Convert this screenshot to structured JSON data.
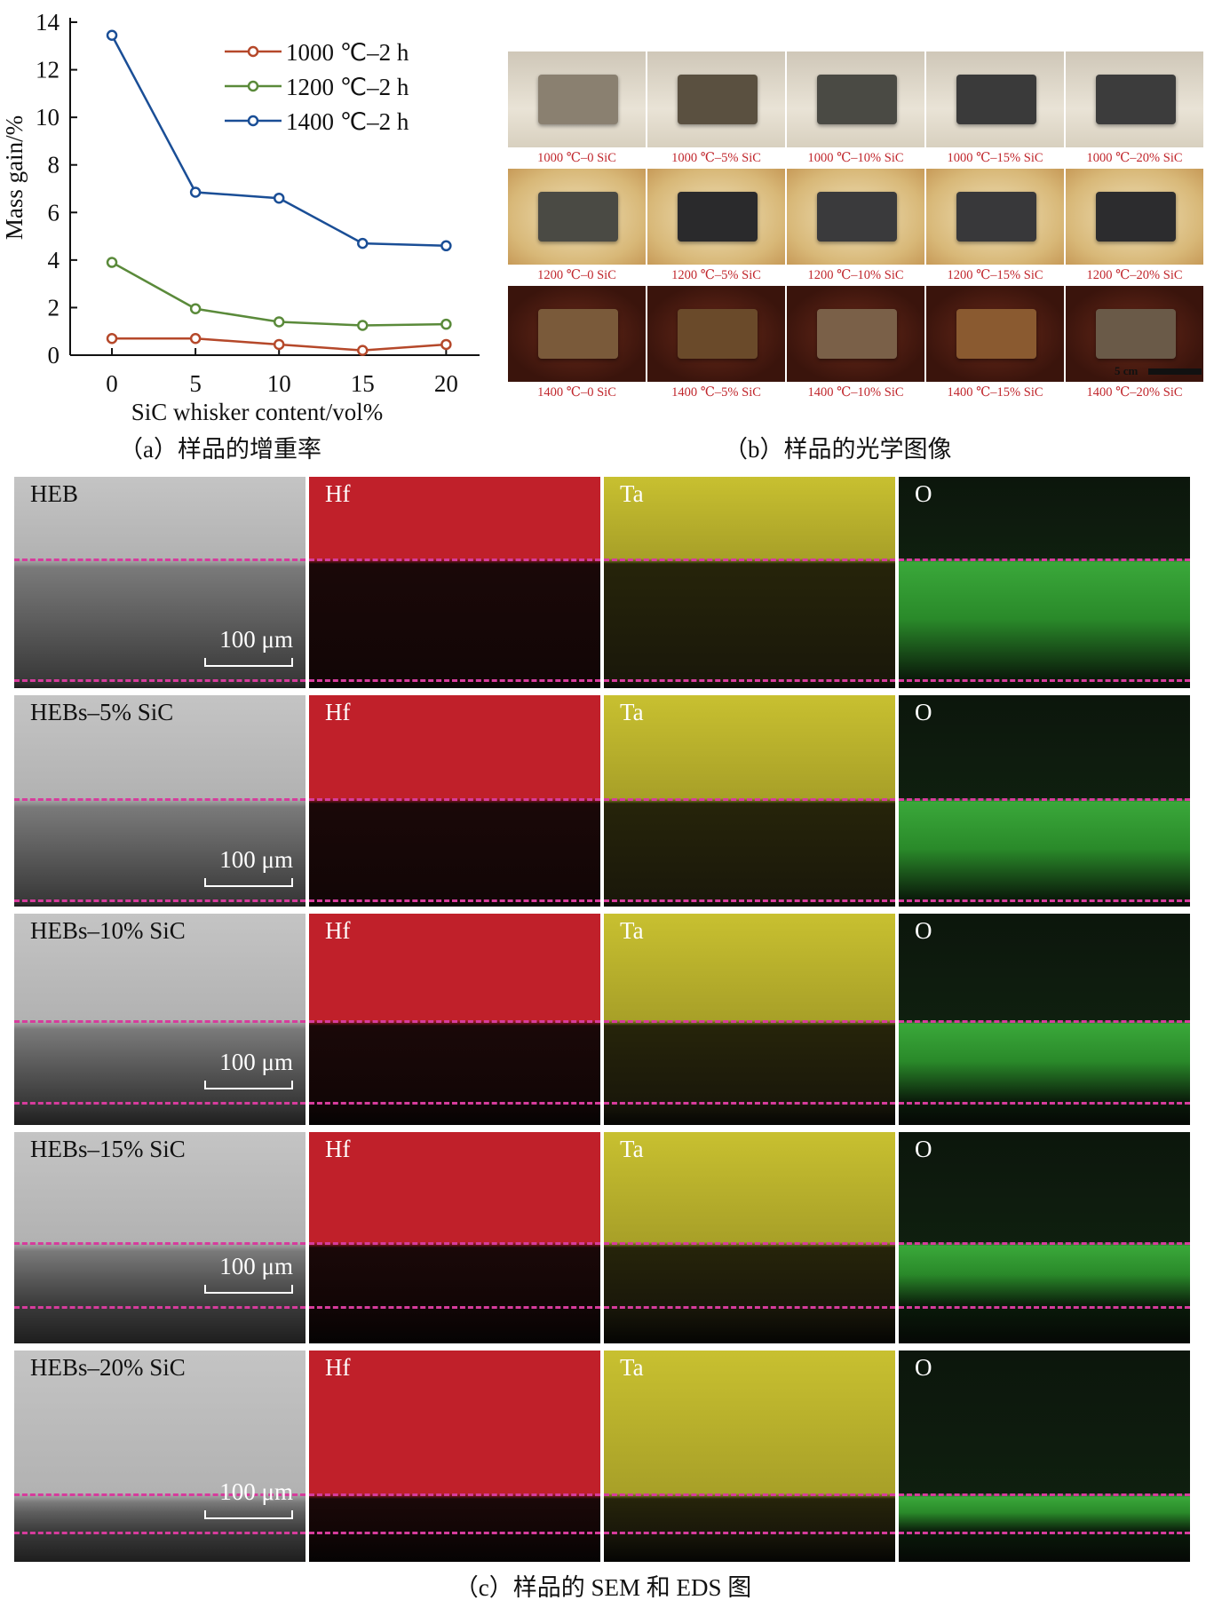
{
  "chart_data": {
    "type": "line",
    "xlabel": "SiC whisker content/vol%",
    "ylabel": "Mass gain/%",
    "x": [
      0,
      5,
      10,
      15,
      20
    ],
    "xlim": [
      -2.5,
      22
    ],
    "ylim": [
      0,
      14
    ],
    "xticks": [
      "0",
      "5",
      "10",
      "15",
      "20"
    ],
    "yticks": [
      "0",
      "2",
      "4",
      "6",
      "8",
      "10",
      "12",
      "14"
    ],
    "grid": false,
    "legend_position": "top-right",
    "series": [
      {
        "name": "1000 ℃–2 h",
        "color": "#b5482a",
        "values": [
          0.7,
          0.7,
          0.45,
          0.2,
          0.45
        ]
      },
      {
        "name": "1200 ℃–2 h",
        "color": "#5a8a3a",
        "values": [
          3.9,
          1.95,
          1.4,
          1.25,
          1.3
        ]
      },
      {
        "name": "1400 ℃–2 h",
        "color": "#1a4e96",
        "values": [
          13.45,
          6.85,
          6.6,
          4.7,
          4.6
        ]
      }
    ]
  },
  "captions": {
    "a": "（a）样品的增重率",
    "b": "（b）样品的光学图像",
    "c": "（c）样品的 SEM 和 EDS 图"
  },
  "photos": {
    "rows": [
      {
        "labels": [
          "1000 ℃–0 SiC",
          "1000 ℃–5% SiC",
          "1000 ℃–10% SiC",
          "1000 ℃–15% SiC",
          "1000 ℃–20% SiC"
        ]
      },
      {
        "labels": [
          "1200 ℃–0 SiC",
          "1200 ℃–5% SiC",
          "1200 ℃–10% SiC",
          "1200 ℃–15% SiC",
          "1200 ℃–20% SiC"
        ]
      },
      {
        "labels": [
          "1400 ℃–0 SiC",
          "1400 ℃–5% SiC",
          "1400 ℃–10% SiC",
          "1400 ℃–15% SiC",
          "1400 ℃–20% SiC"
        ]
      }
    ],
    "scale_bar": "5 cm",
    "specimen_colors": [
      [
        "#8a8070",
        "#5a5040",
        "#4a4a44",
        "#3a3a3a",
        "#3c3c3c"
      ],
      [
        "#4a4a44",
        "#2a2a2c",
        "#3a3a3c",
        "#38383a",
        "#2c2c2e"
      ],
      [
        "#7a5a3a",
        "#6a4a2a",
        "#7a6048",
        "#8a5a30",
        "#6a5a48"
      ]
    ]
  },
  "sem": {
    "rows": [
      {
        "sample": "HEB",
        "scale": "100 μm"
      },
      {
        "sample": "HEBs–5% SiC",
        "scale": "100 μm"
      },
      {
        "sample": "HEBs–10% SiC",
        "scale": "100 μm"
      },
      {
        "sample": "HEBs–15% SiC",
        "scale": "100 μm"
      },
      {
        "sample": "HEBs–20% SiC",
        "scale": "100 μm"
      }
    ],
    "elements": [
      "Hf",
      "Ta",
      "O"
    ],
    "element_colors": {
      "Hf": "#c0202a",
      "Ta": "#c8c030",
      "O": "#3aa83a"
    }
  }
}
